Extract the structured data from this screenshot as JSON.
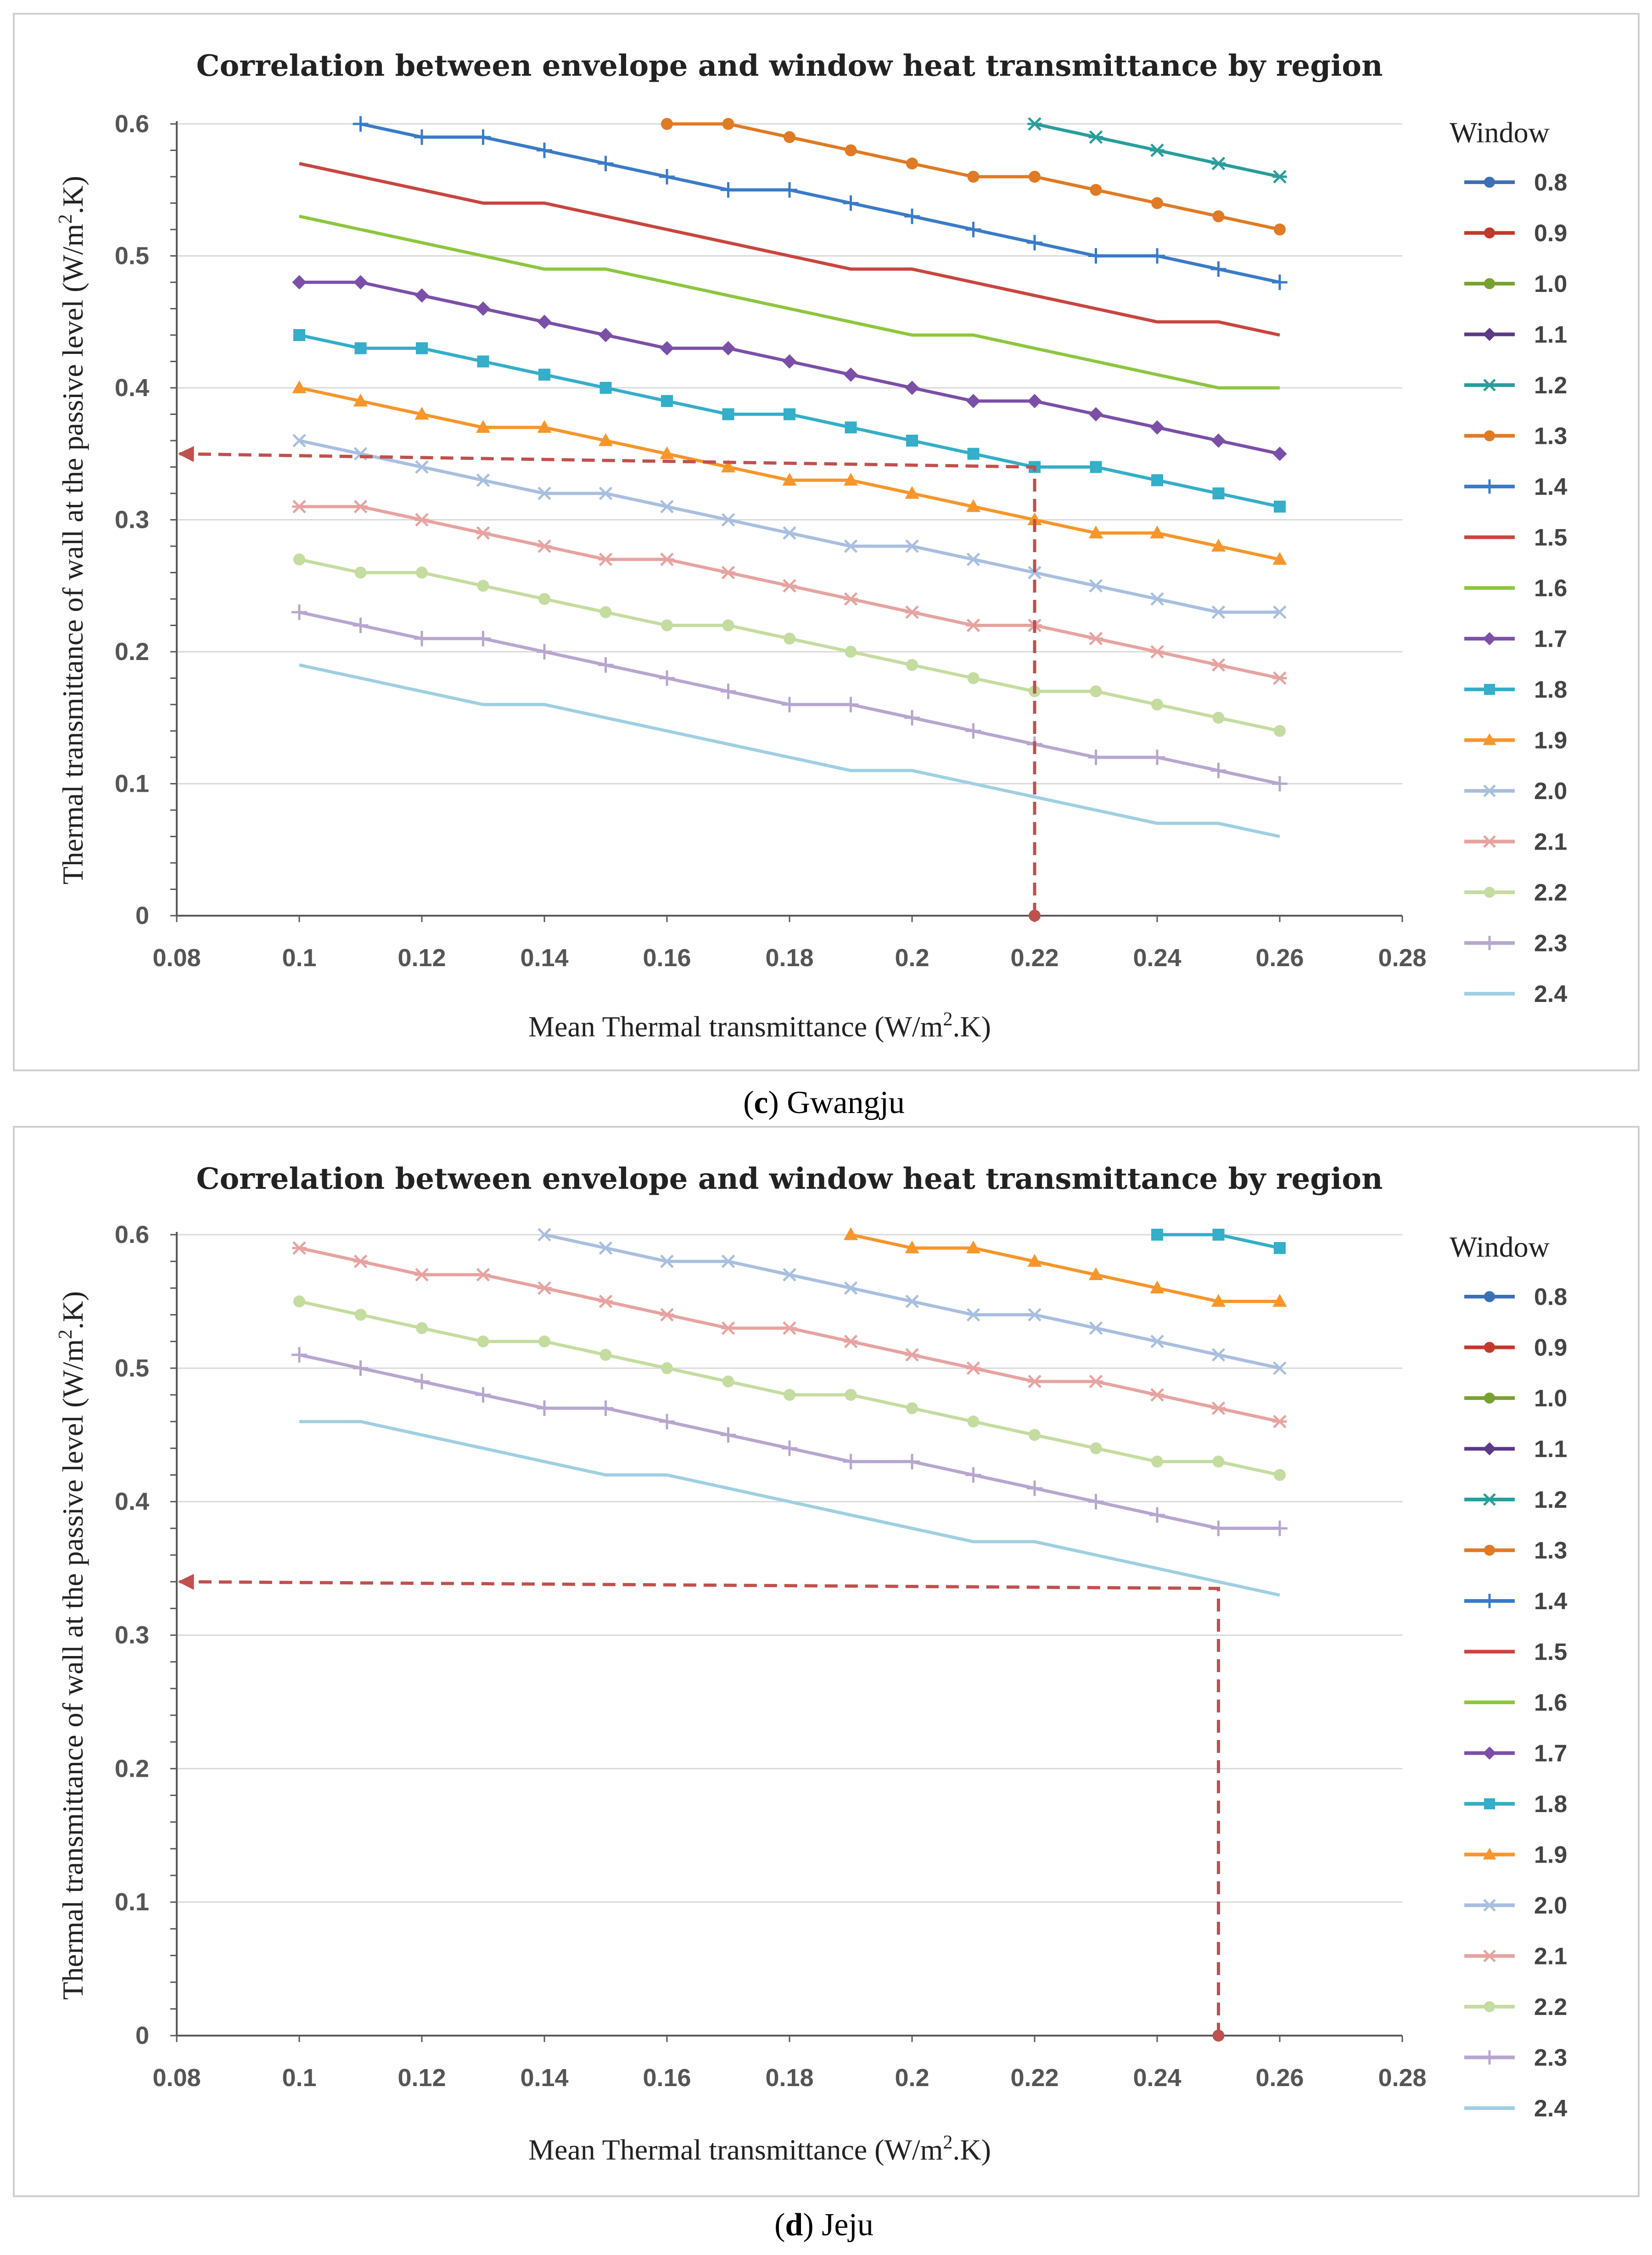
{
  "legend_title": "Window",
  "x_ticks": [
    "0.08",
    "0.1",
    "0.12",
    "0.14",
    "0.16",
    "0.18",
    "0.2",
    "0.22",
    "0.24",
    "0.26",
    "0.28"
  ],
  "y_ticks": [
    "0",
    "0.1",
    "0.2",
    "0.3",
    "0.4",
    "0.5",
    "0.6"
  ],
  "captions": [
    {
      "letter": "c",
      "open": "(",
      "close": ")",
      "region": " Gwangju"
    },
    {
      "letter": "d",
      "open": "(",
      "close": ")",
      "region": " Jeju"
    }
  ],
  "chart_data": [
    {
      "type": "line",
      "title": "Correlation between envelope and window heat transmittance by region",
      "xlabel": "Mean Thermal transmittance (W/m2.K)",
      "ylabel": "Thermal transmittance of wall at the passive level (W/m2.K)",
      "xlim": [
        0.08,
        0.28
      ],
      "ylim": [
        0,
        0.6
      ],
      "grid": "horizontal",
      "legend_position": "right",
      "x": [
        0.1,
        0.11,
        0.12,
        0.13,
        0.14,
        0.15,
        0.16,
        0.17,
        0.18,
        0.19,
        0.2,
        0.21,
        0.22,
        0.23,
        0.24,
        0.25,
        0.26
      ],
      "series": [
        {
          "name": "0.8",
          "color": "#3d6fb4",
          "marker": "circle",
          "values": [
            null,
            null,
            null,
            null,
            null,
            null,
            null,
            null,
            null,
            null,
            null,
            null,
            null,
            null,
            null,
            null,
            null
          ]
        },
        {
          "name": "0.9",
          "color": "#c0392b",
          "marker": "circle",
          "values": [
            null,
            null,
            null,
            null,
            null,
            null,
            null,
            null,
            null,
            null,
            null,
            null,
            null,
            null,
            null,
            null,
            null
          ]
        },
        {
          "name": "1.0",
          "color": "#78a22f",
          "marker": "circle",
          "values": [
            null,
            null,
            null,
            null,
            null,
            null,
            null,
            null,
            null,
            null,
            null,
            null,
            null,
            null,
            null,
            null,
            null
          ]
        },
        {
          "name": "1.1",
          "color": "#5b3a86",
          "marker": "diamond",
          "values": [
            null,
            null,
            null,
            null,
            null,
            null,
            null,
            null,
            null,
            null,
            null,
            null,
            null,
            null,
            null,
            null,
            null
          ]
        },
        {
          "name": "1.2",
          "color": "#2a9d9d",
          "marker": "star",
          "values": [
            null,
            null,
            null,
            null,
            null,
            null,
            null,
            null,
            null,
            null,
            null,
            null,
            0.6,
            0.59,
            0.58,
            0.57,
            0.56
          ]
        },
        {
          "name": "1.3",
          "color": "#e07a24",
          "marker": "circle",
          "values": [
            null,
            null,
            null,
            null,
            null,
            null,
            0.6,
            0.6,
            0.59,
            0.58,
            0.57,
            0.56,
            0.56,
            0.55,
            0.54,
            0.53,
            0.52
          ]
        },
        {
          "name": "1.4",
          "color": "#3a7bc8",
          "marker": "plus",
          "values": [
            null,
            0.6,
            0.59,
            0.59,
            0.58,
            0.57,
            0.56,
            0.55,
            0.55,
            0.54,
            0.53,
            0.52,
            0.51,
            0.5,
            0.5,
            0.49,
            0.48
          ]
        },
        {
          "name": "1.5",
          "color": "#c9453f",
          "marker": "none",
          "values": [
            0.57,
            0.56,
            0.55,
            0.54,
            0.54,
            0.53,
            0.52,
            0.51,
            0.5,
            0.49,
            0.49,
            0.48,
            0.47,
            0.46,
            0.45,
            0.45,
            0.44
          ]
        },
        {
          "name": "1.6",
          "color": "#8dc63f",
          "marker": "none",
          "values": [
            0.53,
            0.52,
            0.51,
            0.5,
            0.49,
            0.49,
            0.48,
            0.47,
            0.46,
            0.45,
            0.44,
            0.44,
            0.43,
            0.42,
            0.41,
            0.4,
            0.4
          ]
        },
        {
          "name": "1.7",
          "color": "#7b4fa8",
          "marker": "diamond",
          "values": [
            0.48,
            0.48,
            0.47,
            0.46,
            0.45,
            0.44,
            0.43,
            0.43,
            0.42,
            0.41,
            0.4,
            0.39,
            0.39,
            0.38,
            0.37,
            0.36,
            0.35
          ]
        },
        {
          "name": "1.8",
          "color": "#34aec9",
          "marker": "square",
          "values": [
            0.44,
            0.43,
            0.43,
            0.42,
            0.41,
            0.4,
            0.39,
            0.38,
            0.38,
            0.37,
            0.36,
            0.35,
            0.34,
            0.34,
            0.33,
            0.32,
            0.31
          ]
        },
        {
          "name": "1.9",
          "color": "#f7962b",
          "marker": "triangle",
          "values": [
            0.4,
            0.39,
            0.38,
            0.37,
            0.37,
            0.36,
            0.35,
            0.34,
            0.33,
            0.33,
            0.32,
            0.31,
            0.3,
            0.29,
            0.29,
            0.28,
            0.27
          ]
        },
        {
          "name": "2.0",
          "color": "#a9bfe0",
          "marker": "cross",
          "values": [
            0.36,
            0.35,
            0.34,
            0.33,
            0.32,
            0.32,
            0.31,
            0.3,
            0.29,
            0.28,
            0.28,
            0.27,
            0.26,
            0.25,
            0.24,
            0.23,
            0.23
          ]
        },
        {
          "name": "2.1",
          "color": "#e7a3a0",
          "marker": "star",
          "values": [
            0.31,
            0.31,
            0.3,
            0.29,
            0.28,
            0.27,
            0.27,
            0.26,
            0.25,
            0.24,
            0.23,
            0.22,
            0.22,
            0.21,
            0.2,
            0.19,
            0.18
          ]
        },
        {
          "name": "2.2",
          "color": "#c5dca0",
          "marker": "circle",
          "values": [
            0.27,
            0.26,
            0.26,
            0.25,
            0.24,
            0.23,
            0.22,
            0.22,
            0.21,
            0.2,
            0.19,
            0.18,
            0.17,
            0.17,
            0.16,
            0.15,
            0.14
          ]
        },
        {
          "name": "2.3",
          "color": "#b7a6cf",
          "marker": "plus",
          "values": [
            0.23,
            0.22,
            0.21,
            0.21,
            0.2,
            0.19,
            0.18,
            0.17,
            0.16,
            0.16,
            0.15,
            0.14,
            0.13,
            0.12,
            0.12,
            0.11,
            0.1
          ]
        },
        {
          "name": "2.4",
          "color": "#9fcfe2",
          "marker": "none",
          "values": [
            0.19,
            0.18,
            0.17,
            0.16,
            0.16,
            0.15,
            0.14,
            0.13,
            0.12,
            0.11,
            0.11,
            0.1,
            0.09,
            0.08,
            0.07,
            0.07,
            0.06
          ]
        }
      ],
      "annotation": {
        "x": 0.22,
        "y": 0.35,
        "y_corner": 0.34,
        "style": "red dashed arrow"
      }
    },
    {
      "type": "line",
      "title": "Correlation between envelope and window heat transmittance by region",
      "xlabel": "Mean Thermal transmittance (W/m2.K)",
      "ylabel": "Thermal transmittance of wall at the passive level (W/m2.K)",
      "xlim": [
        0.08,
        0.28
      ],
      "ylim": [
        0,
        0.6
      ],
      "grid": "horizontal",
      "legend_position": "right",
      "x": [
        0.1,
        0.11,
        0.12,
        0.13,
        0.14,
        0.15,
        0.16,
        0.17,
        0.18,
        0.19,
        0.2,
        0.21,
        0.22,
        0.23,
        0.24,
        0.25,
        0.26
      ],
      "series": [
        {
          "name": "0.8",
          "color": "#3d6fb4",
          "marker": "circle",
          "values": [
            null,
            null,
            null,
            null,
            null,
            null,
            null,
            null,
            null,
            null,
            null,
            null,
            null,
            null,
            null,
            null,
            null
          ]
        },
        {
          "name": "0.9",
          "color": "#c0392b",
          "marker": "circle",
          "values": [
            null,
            null,
            null,
            null,
            null,
            null,
            null,
            null,
            null,
            null,
            null,
            null,
            null,
            null,
            null,
            null,
            null
          ]
        },
        {
          "name": "1.0",
          "color": "#78a22f",
          "marker": "circle",
          "values": [
            null,
            null,
            null,
            null,
            null,
            null,
            null,
            null,
            null,
            null,
            null,
            null,
            null,
            null,
            null,
            null,
            null
          ]
        },
        {
          "name": "1.1",
          "color": "#5b3a86",
          "marker": "diamond",
          "values": [
            null,
            null,
            null,
            null,
            null,
            null,
            null,
            null,
            null,
            null,
            null,
            null,
            null,
            null,
            null,
            null,
            null
          ]
        },
        {
          "name": "1.2",
          "color": "#2a9d9d",
          "marker": "star",
          "values": [
            null,
            null,
            null,
            null,
            null,
            null,
            null,
            null,
            null,
            null,
            null,
            null,
            null,
            null,
            null,
            null,
            null
          ]
        },
        {
          "name": "1.3",
          "color": "#e07a24",
          "marker": "circle",
          "values": [
            null,
            null,
            null,
            null,
            null,
            null,
            null,
            null,
            null,
            null,
            null,
            null,
            null,
            null,
            null,
            null,
            null
          ]
        },
        {
          "name": "1.4",
          "color": "#3a7bc8",
          "marker": "plus",
          "values": [
            null,
            null,
            null,
            null,
            null,
            null,
            null,
            null,
            null,
            null,
            null,
            null,
            null,
            null,
            null,
            null,
            null
          ]
        },
        {
          "name": "1.5",
          "color": "#c9453f",
          "marker": "none",
          "values": [
            null,
            null,
            null,
            null,
            null,
            null,
            null,
            null,
            null,
            null,
            null,
            null,
            null,
            null,
            null,
            null,
            null
          ]
        },
        {
          "name": "1.6",
          "color": "#8dc63f",
          "marker": "none",
          "values": [
            null,
            null,
            null,
            null,
            null,
            null,
            null,
            null,
            null,
            null,
            null,
            null,
            null,
            null,
            null,
            null,
            null
          ]
        },
        {
          "name": "1.7",
          "color": "#7b4fa8",
          "marker": "diamond",
          "values": [
            null,
            null,
            null,
            null,
            null,
            null,
            null,
            null,
            null,
            null,
            null,
            null,
            null,
            null,
            null,
            null,
            null
          ]
        },
        {
          "name": "1.8",
          "color": "#34aec9",
          "marker": "square",
          "values": [
            null,
            null,
            null,
            null,
            null,
            null,
            null,
            null,
            null,
            null,
            null,
            null,
            null,
            null,
            0.6,
            0.6,
            0.59
          ]
        },
        {
          "name": "1.9",
          "color": "#f7962b",
          "marker": "triangle",
          "values": [
            null,
            null,
            null,
            null,
            null,
            null,
            null,
            null,
            null,
            0.6,
            0.59,
            0.59,
            0.58,
            0.57,
            0.56,
            0.55,
            0.55
          ]
        },
        {
          "name": "2.0",
          "color": "#a9bfe0",
          "marker": "cross",
          "values": [
            null,
            null,
            null,
            null,
            0.6,
            0.59,
            0.58,
            0.58,
            0.57,
            0.56,
            0.55,
            0.54,
            0.54,
            0.53,
            0.52,
            0.51,
            0.5
          ]
        },
        {
          "name": "2.1",
          "color": "#e7a3a0",
          "marker": "star",
          "values": [
            0.59,
            0.58,
            0.57,
            0.57,
            0.56,
            0.55,
            0.54,
            0.53,
            0.53,
            0.52,
            0.51,
            0.5,
            0.49,
            0.49,
            0.48,
            0.47,
            0.46
          ]
        },
        {
          "name": "2.2",
          "color": "#c5dca0",
          "marker": "circle",
          "values": [
            0.55,
            0.54,
            0.53,
            0.52,
            0.52,
            0.51,
            0.5,
            0.49,
            0.48,
            0.48,
            0.47,
            0.46,
            0.45,
            0.44,
            0.43,
            0.43,
            0.42
          ]
        },
        {
          "name": "2.3",
          "color": "#b7a6cf",
          "marker": "plus",
          "values": [
            0.51,
            0.5,
            0.49,
            0.48,
            0.47,
            0.47,
            0.46,
            0.45,
            0.44,
            0.43,
            0.43,
            0.42,
            0.41,
            0.4,
            0.39,
            0.38,
            0.38
          ]
        },
        {
          "name": "2.4",
          "color": "#9fcfe2",
          "marker": "none",
          "values": [
            0.46,
            0.46,
            0.45,
            0.44,
            0.43,
            0.42,
            0.42,
            0.41,
            0.4,
            0.39,
            0.38,
            0.37,
            0.37,
            0.36,
            0.35,
            0.34,
            0.33
          ]
        }
      ],
      "annotation": {
        "x": 0.25,
        "y": 0.34,
        "y_corner": 0.335,
        "style": "red dashed arrow"
      }
    }
  ]
}
